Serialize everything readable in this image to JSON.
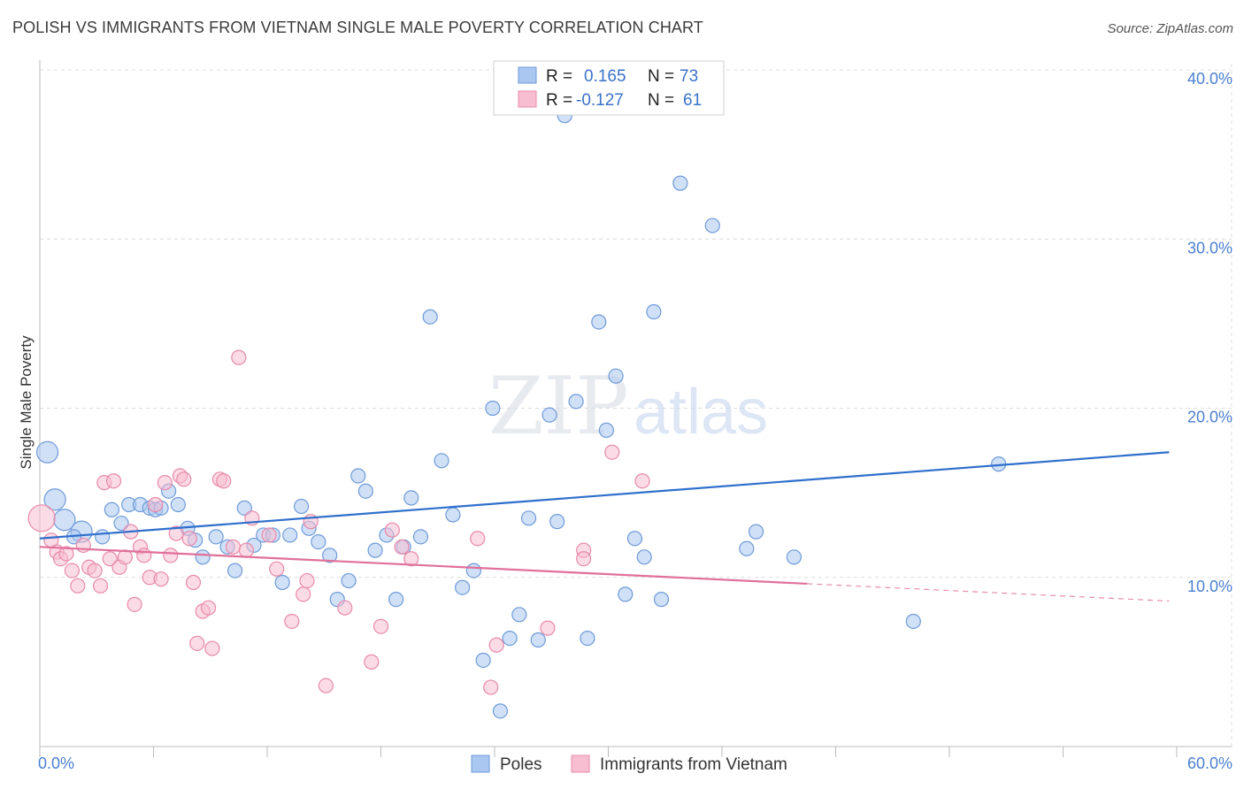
{
  "title": "POLISH VS IMMIGRANTS FROM VIETNAM SINGLE MALE POVERTY CORRELATION CHART",
  "source": "Source: ZipAtlas.com",
  "watermark": {
    "zip": "ZIP",
    "atlas": "atlas"
  },
  "colors": {
    "poles_fill": "#a9c7f0",
    "poles_stroke": "#6f9bd8",
    "poles_line": "#2f6fcc",
    "vietnam_fill": "#f7bdd0",
    "vietnam_stroke": "#e88aab",
    "vietnam_line": "#e0709a",
    "axis_text": "#4a7fd0",
    "grid": "#dcdcdc"
  },
  "legend": {
    "rows": [
      {
        "r_label": "R =",
        "r_value": "0.165",
        "n_label": "N =",
        "n_value": "73"
      },
      {
        "r_label": "R =",
        "r_value": "-0.127",
        "n_label": "N =",
        "n_value": "61"
      }
    ]
  },
  "bottom_legend": [
    "Poles",
    "Immigrants from Vietnam"
  ],
  "chart_data": {
    "type": "scatter",
    "ylabel": "Single Male Poverty",
    "xlim": [
      0,
      60
    ],
    "ylim": [
      0,
      40
    ],
    "x_tick_labels": [
      "0.0%",
      "60.0%"
    ],
    "y_ticks": [
      10,
      20,
      30,
      40
    ],
    "y_tick_labels": [
      "10.0%",
      "20.0%",
      "30.0%",
      "40.0%"
    ],
    "grid": true,
    "legend_position": "top-center",
    "series": [
      {
        "name": "Poles",
        "trend": {
          "x": [
            0,
            59.6
          ],
          "y": [
            12.3,
            17.4
          ],
          "dashed_from": null
        },
        "points": [
          {
            "x": 0.4,
            "y": 17.4,
            "s": "l"
          },
          {
            "x": 0.8,
            "y": 14.6,
            "s": "l"
          },
          {
            "x": 1.3,
            "y": 13.4,
            "s": "l"
          },
          {
            "x": 2.2,
            "y": 12.7,
            "s": "l"
          },
          {
            "x": 1.8,
            "y": 12.4,
            "s": "m"
          },
          {
            "x": 3.3,
            "y": 12.4,
            "s": "m"
          },
          {
            "x": 3.8,
            "y": 14.0,
            "s": "m"
          },
          {
            "x": 4.3,
            "y": 13.2,
            "s": "m"
          },
          {
            "x": 4.7,
            "y": 14.3,
            "s": "m"
          },
          {
            "x": 5.3,
            "y": 14.3,
            "s": "m"
          },
          {
            "x": 5.8,
            "y": 14.1,
            "s": "m"
          },
          {
            "x": 6.1,
            "y": 14.0,
            "s": "m"
          },
          {
            "x": 6.8,
            "y": 15.1,
            "s": "m"
          },
          {
            "x": 7.3,
            "y": 14.3,
            "s": "m"
          },
          {
            "x": 7.8,
            "y": 12.9,
            "s": "m"
          },
          {
            "x": 8.2,
            "y": 12.2,
            "s": "m"
          },
          {
            "x": 8.6,
            "y": 11.2,
            "s": "m"
          },
          {
            "x": 9.3,
            "y": 12.4,
            "s": "m"
          },
          {
            "x": 9.9,
            "y": 11.8,
            "s": "m"
          },
          {
            "x": 10.3,
            "y": 10.4,
            "s": "m"
          },
          {
            "x": 10.8,
            "y": 14.1,
            "s": "m"
          },
          {
            "x": 11.3,
            "y": 11.9,
            "s": "m"
          },
          {
            "x": 11.8,
            "y": 12.5,
            "s": "m"
          },
          {
            "x": 12.3,
            "y": 12.5,
            "s": "m"
          },
          {
            "x": 12.8,
            "y": 9.7,
            "s": "m"
          },
          {
            "x": 13.2,
            "y": 12.5,
            "s": "m"
          },
          {
            "x": 13.8,
            "y": 14.2,
            "s": "m"
          },
          {
            "x": 14.2,
            "y": 12.9,
            "s": "m"
          },
          {
            "x": 14.7,
            "y": 12.1,
            "s": "m"
          },
          {
            "x": 15.3,
            "y": 11.3,
            "s": "m"
          },
          {
            "x": 15.7,
            "y": 8.7,
            "s": "m"
          },
          {
            "x": 16.3,
            "y": 9.8,
            "s": "m"
          },
          {
            "x": 16.8,
            "y": 16.0,
            "s": "m"
          },
          {
            "x": 17.2,
            "y": 15.1,
            "s": "m"
          },
          {
            "x": 17.7,
            "y": 11.6,
            "s": "m"
          },
          {
            "x": 18.3,
            "y": 12.5,
            "s": "m"
          },
          {
            "x": 18.8,
            "y": 8.7,
            "s": "m"
          },
          {
            "x": 19.2,
            "y": 11.8,
            "s": "m"
          },
          {
            "x": 19.6,
            "y": 14.7,
            "s": "m"
          },
          {
            "x": 20.1,
            "y": 12.4,
            "s": "m"
          },
          {
            "x": 20.6,
            "y": 25.4,
            "s": "m"
          },
          {
            "x": 21.2,
            "y": 16.9,
            "s": "m"
          },
          {
            "x": 21.8,
            "y": 13.7,
            "s": "m"
          },
          {
            "x": 22.3,
            "y": 9.4,
            "s": "m"
          },
          {
            "x": 22.9,
            "y": 10.4,
            "s": "m"
          },
          {
            "x": 23.4,
            "y": 5.1,
            "s": "m"
          },
          {
            "x": 23.9,
            "y": 20.0,
            "s": "m"
          },
          {
            "x": 24.3,
            "y": 2.1,
            "s": "m"
          },
          {
            "x": 24.8,
            "y": 6.4,
            "s": "m"
          },
          {
            "x": 25.3,
            "y": 7.8,
            "s": "m"
          },
          {
            "x": 25.8,
            "y": 13.5,
            "s": "m"
          },
          {
            "x": 26.3,
            "y": 6.3,
            "s": "m"
          },
          {
            "x": 26.9,
            "y": 19.6,
            "s": "m"
          },
          {
            "x": 27.3,
            "y": 13.3,
            "s": "m"
          },
          {
            "x": 27.7,
            "y": 37.3,
            "s": "m"
          },
          {
            "x": 28.3,
            "y": 20.4,
            "s": "m"
          },
          {
            "x": 28.9,
            "y": 6.4,
            "s": "m"
          },
          {
            "x": 29.5,
            "y": 25.1,
            "s": "m"
          },
          {
            "x": 29.9,
            "y": 18.7,
            "s": "m"
          },
          {
            "x": 30.4,
            "y": 21.9,
            "s": "m"
          },
          {
            "x": 30.9,
            "y": 9.0,
            "s": "m"
          },
          {
            "x": 31.4,
            "y": 12.3,
            "s": "m"
          },
          {
            "x": 31.9,
            "y": 11.2,
            "s": "m"
          },
          {
            "x": 32.4,
            "y": 25.7,
            "s": "m"
          },
          {
            "x": 32.8,
            "y": 8.7,
            "s": "m"
          },
          {
            "x": 33.8,
            "y": 33.3,
            "s": "m"
          },
          {
            "x": 35.5,
            "y": 30.8,
            "s": "m"
          },
          {
            "x": 37.3,
            "y": 11.7,
            "s": "m"
          },
          {
            "x": 37.8,
            "y": 12.7,
            "s": "m"
          },
          {
            "x": 39.8,
            "y": 11.2,
            "s": "m"
          },
          {
            "x": 46.1,
            "y": 7.4,
            "s": "m"
          },
          {
            "x": 50.6,
            "y": 16.7,
            "s": "m"
          },
          {
            "x": 6.4,
            "y": 14.1,
            "s": "m"
          }
        ]
      },
      {
        "name": "Immigrants from Vietnam",
        "trend": {
          "x": [
            0,
            59.6
          ],
          "y": [
            11.8,
            8.6
          ],
          "dashed_from": 40.5
        },
        "points": [
          {
            "x": 0.1,
            "y": 13.5,
            "s": "xl"
          },
          {
            "x": 0.6,
            "y": 12.2,
            "s": "m"
          },
          {
            "x": 0.9,
            "y": 11.5,
            "s": "m"
          },
          {
            "x": 1.1,
            "y": 11.1,
            "s": "m"
          },
          {
            "x": 1.4,
            "y": 11.4,
            "s": "m"
          },
          {
            "x": 1.7,
            "y": 10.4,
            "s": "m"
          },
          {
            "x": 2.0,
            "y": 9.5,
            "s": "m"
          },
          {
            "x": 2.3,
            "y": 11.9,
            "s": "m"
          },
          {
            "x": 2.6,
            "y": 10.6,
            "s": "m"
          },
          {
            "x": 2.9,
            "y": 10.4,
            "s": "m"
          },
          {
            "x": 3.2,
            "y": 9.5,
            "s": "m"
          },
          {
            "x": 3.4,
            "y": 15.6,
            "s": "m"
          },
          {
            "x": 3.7,
            "y": 11.1,
            "s": "m"
          },
          {
            "x": 3.9,
            "y": 15.7,
            "s": "m"
          },
          {
            "x": 4.2,
            "y": 10.6,
            "s": "m"
          },
          {
            "x": 4.5,
            "y": 11.2,
            "s": "m"
          },
          {
            "x": 4.8,
            "y": 12.7,
            "s": "m"
          },
          {
            "x": 5.0,
            "y": 8.4,
            "s": "m"
          },
          {
            "x": 5.3,
            "y": 11.8,
            "s": "m"
          },
          {
            "x": 5.5,
            "y": 11.3,
            "s": "m"
          },
          {
            "x": 5.8,
            "y": 10.0,
            "s": "m"
          },
          {
            "x": 6.1,
            "y": 14.3,
            "s": "m"
          },
          {
            "x": 6.4,
            "y": 9.9,
            "s": "m"
          },
          {
            "x": 6.6,
            "y": 15.6,
            "s": "m"
          },
          {
            "x": 6.9,
            "y": 11.3,
            "s": "m"
          },
          {
            "x": 7.2,
            "y": 12.6,
            "s": "m"
          },
          {
            "x": 7.4,
            "y": 16.0,
            "s": "m"
          },
          {
            "x": 7.6,
            "y": 15.8,
            "s": "m"
          },
          {
            "x": 7.9,
            "y": 12.3,
            "s": "m"
          },
          {
            "x": 8.1,
            "y": 9.7,
            "s": "m"
          },
          {
            "x": 8.3,
            "y": 6.1,
            "s": "m"
          },
          {
            "x": 8.6,
            "y": 8.0,
            "s": "m"
          },
          {
            "x": 8.9,
            "y": 8.2,
            "s": "m"
          },
          {
            "x": 9.1,
            "y": 5.8,
            "s": "m"
          },
          {
            "x": 9.5,
            "y": 15.8,
            "s": "m"
          },
          {
            "x": 9.7,
            "y": 15.7,
            "s": "m"
          },
          {
            "x": 10.2,
            "y": 11.8,
            "s": "m"
          },
          {
            "x": 10.5,
            "y": 23.0,
            "s": "m"
          },
          {
            "x": 11.2,
            "y": 13.5,
            "s": "m"
          },
          {
            "x": 12.1,
            "y": 12.5,
            "s": "m"
          },
          {
            "x": 12.5,
            "y": 10.5,
            "s": "m"
          },
          {
            "x": 13.3,
            "y": 7.4,
            "s": "m"
          },
          {
            "x": 13.9,
            "y": 9.0,
            "s": "m"
          },
          {
            "x": 14.1,
            "y": 9.8,
            "s": "m"
          },
          {
            "x": 14.3,
            "y": 13.3,
            "s": "m"
          },
          {
            "x": 15.1,
            "y": 3.6,
            "s": "m"
          },
          {
            "x": 16.1,
            "y": 8.2,
            "s": "m"
          },
          {
            "x": 17.5,
            "y": 5.0,
            "s": "m"
          },
          {
            "x": 18.0,
            "y": 7.1,
            "s": "m"
          },
          {
            "x": 18.6,
            "y": 12.8,
            "s": "m"
          },
          {
            "x": 19.1,
            "y": 11.8,
            "s": "m"
          },
          {
            "x": 19.6,
            "y": 11.1,
            "s": "m"
          },
          {
            "x": 23.1,
            "y": 12.3,
            "s": "m"
          },
          {
            "x": 23.8,
            "y": 3.5,
            "s": "m"
          },
          {
            "x": 24.1,
            "y": 6.0,
            "s": "m"
          },
          {
            "x": 26.8,
            "y": 7.0,
            "s": "m"
          },
          {
            "x": 28.7,
            "y": 11.6,
            "s": "m"
          },
          {
            "x": 28.7,
            "y": 11.1,
            "s": "m"
          },
          {
            "x": 30.2,
            "y": 17.4,
            "s": "m"
          },
          {
            "x": 31.8,
            "y": 15.7,
            "s": "m"
          },
          {
            "x": 10.9,
            "y": 11.6,
            "s": "m"
          }
        ]
      }
    ]
  }
}
